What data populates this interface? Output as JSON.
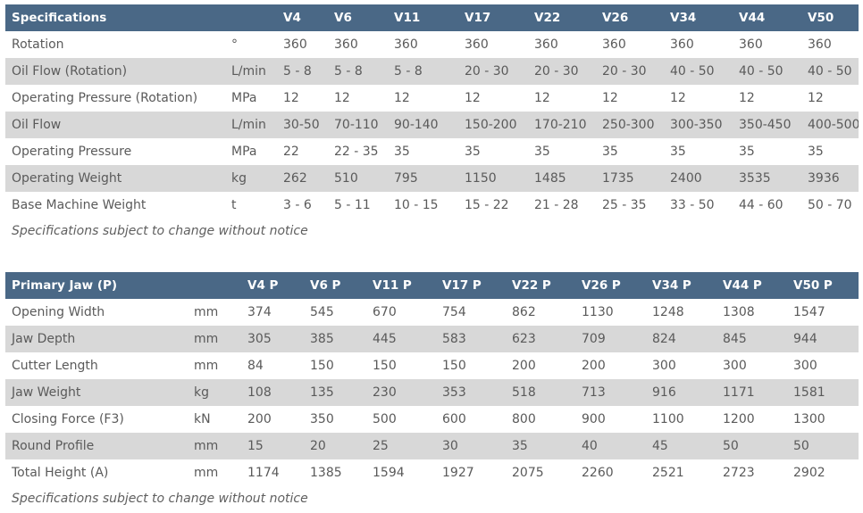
{
  "table1": {
    "headers": [
      "Specifications",
      "",
      "V4",
      "V6",
      "V11",
      "V17",
      "V22",
      "V26",
      "V34",
      "V44",
      "V50"
    ],
    "rows": [
      [
        "Rotation",
        "°",
        "360",
        "360",
        "360",
        "360",
        "360",
        "360",
        "360",
        "360",
        "360"
      ],
      [
        "Oil Flow (Rotation)",
        "L/min",
        "5 - 8",
        "5 - 8",
        "5 - 8",
        "20 - 30",
        "20 - 30",
        "20 - 30",
        "40 - 50",
        "40 - 50",
        "40 - 50"
      ],
      [
        "Operating Pressure (Rotation)",
        "MPa",
        "12",
        "12",
        "12",
        "12",
        "12",
        "12",
        "12",
        "12",
        "12"
      ],
      [
        "Oil Flow",
        "L/min",
        "30-50",
        "70-110",
        "90-140",
        "150-200",
        "170-210",
        "250-300",
        "300-350",
        "350-450",
        "400-500"
      ],
      [
        "Operating Pressure",
        "MPa",
        "22",
        "22 - 35",
        "35",
        "35",
        "35",
        "35",
        "35",
        "35",
        "35"
      ],
      [
        "Operating Weight",
        "kg",
        "262",
        "510",
        "795",
        "1150",
        "1485",
        "1735",
        "2400",
        "3535",
        "3936"
      ],
      [
        "Base Machine Weight",
        "t",
        "3 - 6",
        "5 - 11",
        "10 - 15",
        "15 - 22",
        "21 - 28",
        "25 - 35",
        "33 - 50",
        "44 - 60",
        "50 - 70"
      ]
    ],
    "note": "Specifications subject to change without notice"
  },
  "table2": {
    "headers": [
      "Primary Jaw (P)",
      "",
      "V4 P",
      "V6 P",
      "V11 P",
      "V17 P",
      "V22 P",
      "V26 P",
      "V34 P",
      "V44 P",
      "V50 P"
    ],
    "rows": [
      [
        "Opening Width",
        "mm",
        "374",
        "545",
        "670",
        "754",
        "862",
        "1130",
        "1248",
        "1308",
        "1547"
      ],
      [
        "Jaw Depth",
        "mm",
        "305",
        "385",
        "445",
        "583",
        "623",
        "709",
        "824",
        "845",
        "944"
      ],
      [
        "Cutter Length",
        "mm",
        "84",
        "150",
        "150",
        "150",
        "200",
        "200",
        "300",
        "300",
        "300"
      ],
      [
        "Jaw Weight",
        "kg",
        "108",
        "135",
        "230",
        "353",
        "518",
        "713",
        "916",
        "1171",
        "1581"
      ],
      [
        "Closing Force (F3)",
        "kN",
        "200",
        "350",
        "500",
        "600",
        "800",
        "900",
        "1100",
        "1200",
        "1300"
      ],
      [
        "Round Profile",
        "mm",
        "15",
        "20",
        "25",
        "30",
        "35",
        "40",
        "45",
        "50",
        "50"
      ],
      [
        "Total Height (A)",
        "mm",
        "1174",
        "1385",
        "1594",
        "1927",
        "2075",
        "2260",
        "2521",
        "2723",
        "2902"
      ]
    ],
    "note": "Specifications subject to change without notice"
  }
}
